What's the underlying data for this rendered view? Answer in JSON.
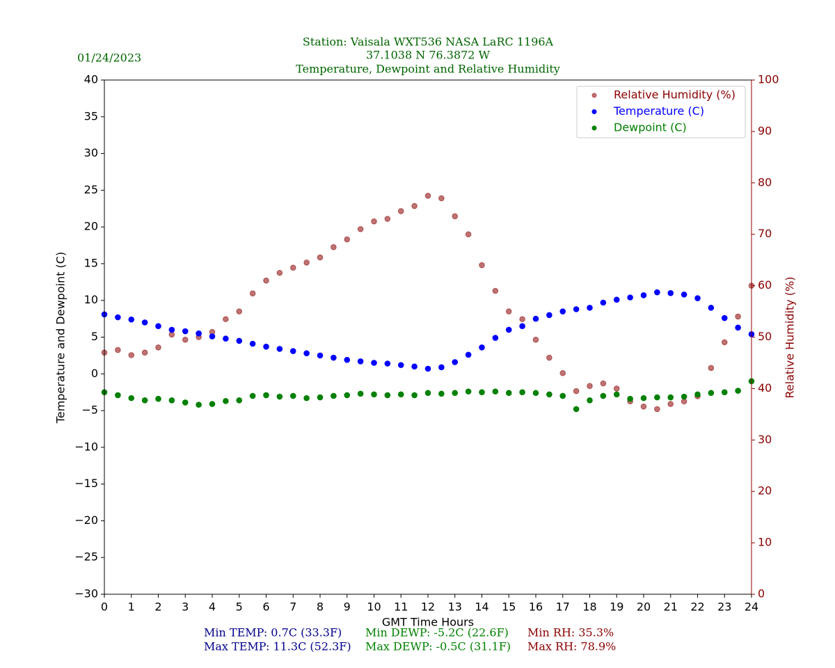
{
  "chart_data": {
    "type": "scatter",
    "title_lines": [
      "Station:  Vaisala WXT536  NASA LaRC 1196A",
      "37.1038 N 76.3872 W",
      "Temperature, Dewpoint and Relative Humidity"
    ],
    "date": "01/24/2023",
    "x_label": "GMT Time Hours",
    "y_label": "Temperature and Dewpoint (C)",
    "y2_label": "Relative Humidity (%)",
    "xlim": [
      0,
      24
    ],
    "xticks": [
      0,
      1,
      2,
      3,
      4,
      5,
      6,
      7,
      8,
      9,
      10,
      11,
      12,
      13,
      14,
      15,
      16,
      17,
      18,
      19,
      20,
      21,
      22,
      23,
      24
    ],
    "ylim": [
      -30,
      40
    ],
    "yticks": [
      {
        "value": -30,
        "label": "−30"
      },
      {
        "value": -25,
        "label": "−25"
      },
      {
        "value": -20,
        "label": "−20"
      },
      {
        "value": -15,
        "label": "−15"
      },
      {
        "value": -10,
        "label": "−10"
      },
      {
        "value": -5,
        "label": "−5"
      },
      0,
      5,
      10,
      15,
      20,
      25,
      30,
      35,
      40
    ],
    "y2lim": [
      0,
      100
    ],
    "y2ticks": [
      0,
      10,
      20,
      30,
      40,
      50,
      60,
      70,
      80,
      90,
      100
    ],
    "y2_color": "#8b0000",
    "legend": "upper right",
    "x": [
      0,
      0.5,
      1,
      1.5,
      2,
      2.5,
      3,
      3.5,
      4,
      4.5,
      5,
      5.5,
      6,
      6.5,
      7,
      7.5,
      8,
      8.5,
      9,
      9.5,
      10,
      10.5,
      11,
      11.5,
      12,
      12.5,
      13,
      13.5,
      14,
      14.5,
      15,
      15.5,
      16,
      16.5,
      17,
      17.5,
      18,
      18.5,
      19,
      19.5,
      20,
      20.5,
      21,
      21.5,
      22,
      22.5,
      23,
      23.5,
      24
    ],
    "series": [
      {
        "name": "Relative Humidity (%)",
        "color": "#8b0000",
        "axis": "y2",
        "values": [
          47,
          47.5,
          46.5,
          47,
          48,
          50.5,
          49.5,
          50,
          51,
          53.5,
          55,
          58.5,
          61,
          62.5,
          63.5,
          64.5,
          65.5,
          67.5,
          69,
          71,
          72.5,
          73,
          74.5,
          75.5,
          77.5,
          77,
          73.5,
          70,
          64,
          59,
          55,
          53.5,
          49.5,
          46,
          43,
          39.5,
          40.5,
          41,
          40,
          37.5,
          36.5,
          36,
          37,
          37.5,
          38.5,
          44,
          49,
          54,
          60
        ]
      },
      {
        "name": "Temperature (C)",
        "color": "#0000ff",
        "values": [
          8.1,
          7.7,
          7.4,
          7.0,
          6.5,
          6.0,
          5.8,
          5.5,
          5.1,
          4.8,
          4.5,
          4.1,
          3.7,
          3.4,
          3.1,
          2.8,
          2.5,
          2.2,
          1.9,
          1.7,
          1.5,
          1.4,
          1.2,
          1.0,
          0.7,
          0.9,
          1.6,
          2.6,
          3.6,
          4.9,
          6.0,
          6.5,
          7.5,
          8.0,
          8.5,
          8.8,
          9.0,
          9.7,
          10.1,
          10.4,
          10.7,
          11.1,
          11.0,
          10.8,
          10.3,
          9.0,
          7.6,
          6.3,
          5.4
        ]
      },
      {
        "name": "Dewpoint (C)",
        "color": "#008000",
        "values": [
          -2.5,
          -2.9,
          -3.3,
          -3.6,
          -3.4,
          -3.6,
          -3.9,
          -4.2,
          -4.1,
          -3.7,
          -3.6,
          -3.0,
          -2.9,
          -3.1,
          -3.0,
          -3.3,
          -3.2,
          -3.0,
          -2.9,
          -2.7,
          -2.8,
          -2.9,
          -2.8,
          -2.9,
          -2.6,
          -2.7,
          -2.6,
          -2.4,
          -2.5,
          -2.4,
          -2.6,
          -2.5,
          -2.6,
          -2.8,
          -3.0,
          -4.8,
          -3.6,
          -3.0,
          -2.8,
          -3.4,
          -3.3,
          -3.2,
          -3.2,
          -3.1,
          -2.8,
          -2.6,
          -2.5,
          -2.3,
          -1.0
        ]
      }
    ],
    "stats": [
      {
        "text": "Min TEMP: 0.7C (33.3F)",
        "color": "#00008b"
      },
      {
        "text": "Max TEMP: 11.3C (52.3F)",
        "color": "#00008b"
      },
      {
        "text": "Min DEWP: -5.2C (22.6F)",
        "color": "#008000"
      },
      {
        "text": "Max DEWP: -0.5C (31.1F)",
        "color": "#008000"
      },
      {
        "text": "Min RH: 35.3%",
        "color": "#8b0000"
      },
      {
        "text": "Max RH: 78.9%",
        "color": "#8b0000"
      }
    ]
  }
}
